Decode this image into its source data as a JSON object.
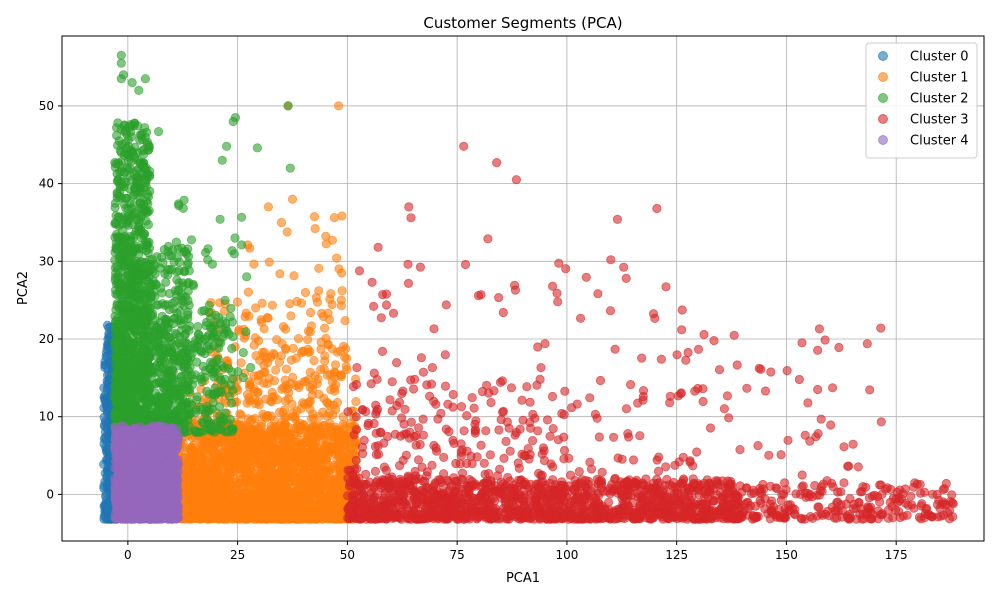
{
  "chart_data": {
    "type": "scatter",
    "title": "Customer Segments (PCA)",
    "xlabel": "PCA1",
    "ylabel": "PCA2",
    "xlim": [
      -15,
      195
    ],
    "ylim": [
      -6,
      59
    ],
    "xticks": [
      0,
      25,
      50,
      75,
      100,
      125,
      150,
      175
    ],
    "yticks": [
      0,
      10,
      20,
      30,
      40,
      50
    ],
    "grid": true,
    "legend_position": "top-right",
    "point_opacity": 0.6,
    "series": [
      {
        "name": "Cluster 0",
        "color": "#1f77b4",
        "regions": [
          {
            "x": [
              -5.5,
              -2.5
            ],
            "y": [
              -3.2,
              22
            ],
            "n": 340
          }
        ],
        "points": []
      },
      {
        "name": "Cluster 1",
        "color": "#ff7f0e",
        "regions": [
          {
            "x": [
              11,
              52
            ],
            "y": [
              -3.2,
              9
            ],
            "n": 1800
          },
          {
            "x": [
              12,
              52
            ],
            "y": [
              -3.2,
              15
            ],
            "n": 400
          },
          {
            "x": [
              18,
              50
            ],
            "y": [
              5,
              26
            ],
            "n": 260
          },
          {
            "x": [
              25,
              50
            ],
            "y": [
              15,
              36
            ],
            "n": 60
          }
        ],
        "points": [
          [
            48,
            50
          ],
          [
            36.5,
            50
          ],
          [
            37.5,
            38
          ],
          [
            32,
            37
          ],
          [
            35,
            35
          ]
        ]
      },
      {
        "name": "Cluster 2",
        "color": "#2ca02c",
        "regions": [
          {
            "x": [
              -3,
              5
            ],
            "y": [
              8,
              48
            ],
            "n": 900
          },
          {
            "x": [
              -3,
              14
            ],
            "y": [
              8,
              32
            ],
            "n": 600
          },
          {
            "x": [
              5,
              24
            ],
            "y": [
              8,
              24
            ],
            "n": 260
          },
          {
            "x": [
              10,
              28
            ],
            "y": [
              15,
              38
            ],
            "n": 60
          }
        ],
        "points": [
          [
            -1.5,
            56.5
          ],
          [
            -1.5,
            55.5
          ],
          [
            -1,
            54
          ],
          [
            4,
            53.5
          ],
          [
            -1.5,
            53.5
          ],
          [
            1,
            53
          ],
          [
            2.5,
            52
          ],
          [
            36.5,
            50
          ],
          [
            24.5,
            48.5
          ],
          [
            24,
            48
          ],
          [
            7,
            46.7
          ],
          [
            22.5,
            44.8
          ],
          [
            29.5,
            44.6
          ],
          [
            37,
            42
          ],
          [
            21.5,
            43
          ]
        ]
      },
      {
        "name": "Cluster 3",
        "color": "#d62728",
        "regions": [
          {
            "x": [
              50,
              140
            ],
            "y": [
              -3.2,
              2
            ],
            "n": 1300
          },
          {
            "x": [
              140,
              188
            ],
            "y": [
              -3.2,
              1.5
            ],
            "n": 220
          },
          {
            "x": [
              50,
              100
            ],
            "y": [
              -3,
              15
            ],
            "n": 280
          },
          {
            "x": [
              52,
              130
            ],
            "y": [
              0,
              30
            ],
            "n": 160
          },
          {
            "x": [
              110,
              172
            ],
            "y": [
              0,
              21
            ],
            "n": 80
          }
        ],
        "points": [
          [
            76.5,
            44.8
          ],
          [
            84,
            42.7
          ],
          [
            88.5,
            40.5
          ],
          [
            64,
            37
          ],
          [
            120.5,
            36.8
          ],
          [
            64.5,
            35.6
          ],
          [
            111.5,
            35.4
          ],
          [
            82,
            32.9
          ],
          [
            57,
            31.8
          ],
          [
            110,
            30.2
          ],
          [
            113.5,
            27.8
          ],
          [
            133.5,
            19.8
          ],
          [
            157.5,
            21.3
          ],
          [
            171.5,
            21.4
          ],
          [
            188,
            -1.2
          ],
          [
            183,
            -2.8
          ],
          [
            184.5,
            -2.9
          ]
        ]
      },
      {
        "name": "Cluster 4",
        "color": "#9467bd",
        "regions": [
          {
            "x": [
              -3,
              11.5
            ],
            "y": [
              -3.2,
              8.8
            ],
            "n": 1400
          }
        ],
        "points": []
      }
    ]
  }
}
